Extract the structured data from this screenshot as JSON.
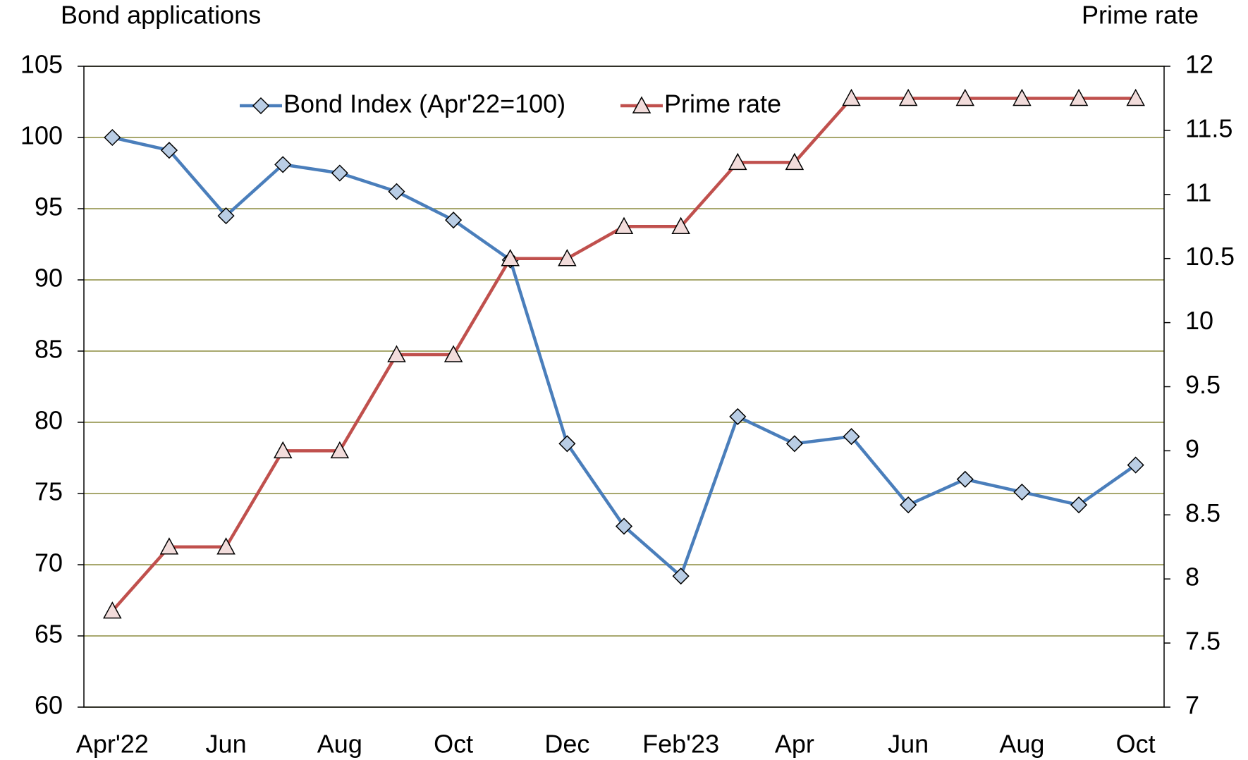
{
  "chart_data": {
    "type": "line",
    "y_axis_title": "Bond applications",
    "y2_axis_title": "Prime rate",
    "categories": [
      "Apr'22",
      null,
      "Jun",
      null,
      "Aug",
      null,
      "Oct",
      null,
      "Dec",
      null,
      "Feb'23",
      null,
      "Apr",
      null,
      "Jun",
      null,
      "Aug",
      null,
      "Oct"
    ],
    "series": [
      {
        "name": "Bond Index (Apr'22=100)",
        "color": "#4a7ebb",
        "marker_fill": "#b9cde5",
        "marker": "diamond",
        "values": [
          100,
          99.1,
          94.5,
          98.1,
          97.5,
          96.2,
          94.2,
          91.4,
          78.5,
          72.7,
          69.2,
          80.4,
          78.5,
          79,
          74.2,
          76,
          75.1,
          74.2,
          77
        ]
      },
      {
        "name": "Prime rate",
        "color": "#c0504d",
        "marker_fill": "#f2dcdb",
        "marker": "triangle",
        "axis": "y2",
        "values": [
          7.75,
          8.25,
          8.25,
          9,
          9,
          9.75,
          9.75,
          10.5,
          10.5,
          10.75,
          10.75,
          11.25,
          11.25,
          11.75,
          11.75,
          11.75,
          11.75,
          11.75,
          11.75
        ]
      }
    ],
    "ylim": [
      60,
      105
    ],
    "yticks": [
      60,
      65,
      70,
      75,
      80,
      85,
      90,
      95,
      100,
      105
    ],
    "y2lim": [
      7,
      12
    ],
    "y2ticks": [
      7,
      7.5,
      8,
      8.5,
      9,
      9.5,
      10,
      10.5,
      11,
      11.5,
      12
    ],
    "grid": true,
    "grid_color": "#8c8c3f",
    "legend": "top"
  }
}
